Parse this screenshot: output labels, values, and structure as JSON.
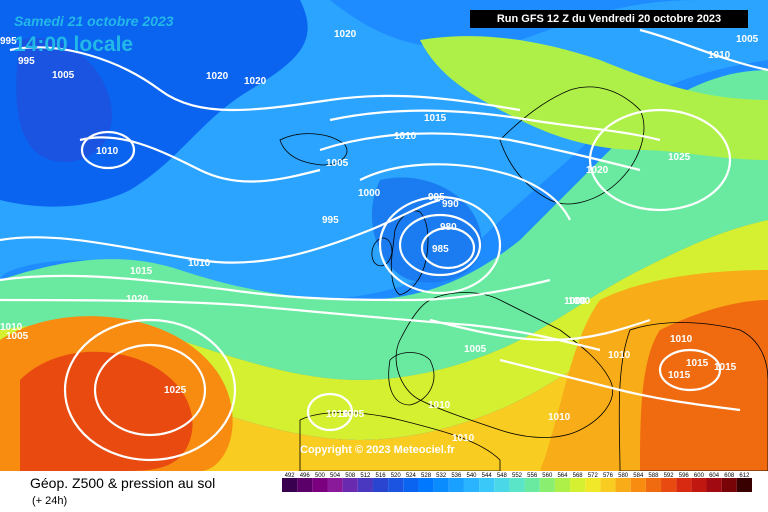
{
  "header": {
    "date": "Samedi 21 octobre 2023",
    "time": "14:00 locale",
    "run": "Run GFS 12 Z du Vendredi 20 octobre 2023"
  },
  "footer": {
    "title": "Géop. Z500 & pression au sol",
    "subtitle": "(+ 24h)",
    "copyright": "Copyright © 2023 Meteociel.fr"
  },
  "scale": {
    "labels": [
      "492",
      "496",
      "500",
      "504",
      "508",
      "512",
      "516",
      "520",
      "524",
      "528",
      "532",
      "536",
      "540",
      "544",
      "548",
      "552",
      "556",
      "560",
      "564",
      "568",
      "572",
      "576",
      "580",
      "584",
      "588",
      "592",
      "596",
      "600",
      "604",
      "608",
      "612"
    ],
    "colors": [
      "#3a0050",
      "#5a0068",
      "#7a0080",
      "#8a1a9a",
      "#6a2ab0",
      "#4a38c0",
      "#2a46d0",
      "#1a54e0",
      "#0a64f0",
      "#0078ff",
      "#0a8cff",
      "#1aa0ff",
      "#2ab4ff",
      "#3ac8f8",
      "#4ad8e8",
      "#5ae4c8",
      "#6aeaa0",
      "#8aee70",
      "#aef048",
      "#d4f030",
      "#f0e828",
      "#f8cc20",
      "#f8ac18",
      "#f88c10",
      "#f06a10",
      "#e84a10",
      "#d82a10",
      "#c01810",
      "#a00a10",
      "#780408",
      "#380000"
    ]
  },
  "isobar_labels": [
    "1020",
    "1020",
    "1020",
    "995",
    "995",
    "1005",
    "1005",
    "1000",
    "1010",
    "1015",
    "1010",
    "1025",
    "1020",
    "1005",
    "1000",
    "995",
    "990",
    "995",
    "980",
    "985",
    "1015",
    "1010",
    "1020",
    "1010",
    "1005",
    "1000",
    "1005",
    "1010",
    "1010",
    "1025",
    "1010",
    "1015",
    "1015",
    "1015",
    "1010",
    "1005",
    "1010",
    "1010",
    "1010"
  ]
}
